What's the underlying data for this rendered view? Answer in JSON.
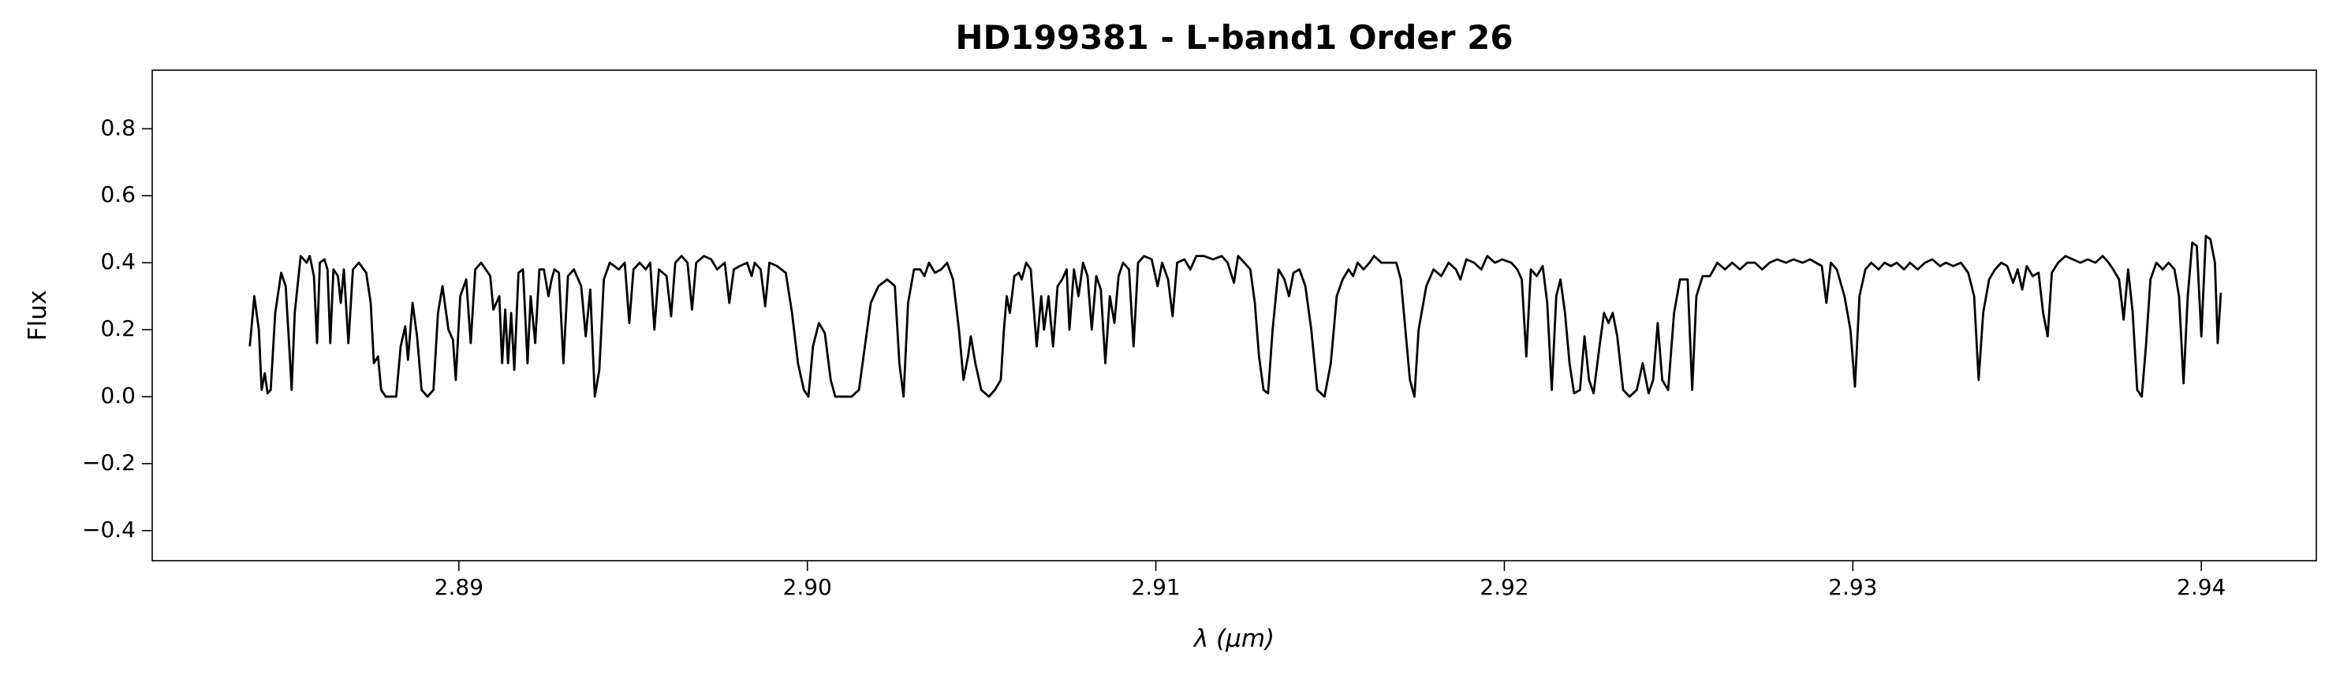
{
  "chart_data": {
    "type": "line",
    "title": "HD199381 - L-band1 Order 26",
    "xlabel": "λ (μm)",
    "ylabel": "Flux",
    "color": "#000000",
    "xlim": [
      2.8812,
      2.9433
    ],
    "ylim": [
      -0.49,
      0.975
    ],
    "xticks": [
      2.89,
      {
        "value": 2.9,
        "label": "2.90"
      },
      2.91,
      2.92,
      2.93,
      2.94
    ],
    "yticks": [
      {
        "value": -0.4,
        "label": "−0.4"
      },
      {
        "value": -0.2,
        "label": "−0.2"
      },
      {
        "value": 0,
        "label": "0.0"
      },
      0.2,
      0.4,
      0.6,
      0.8
    ],
    "x": [
      2.884,
      2.88413,
      2.88426,
      2.88434,
      2.88443,
      2.88451,
      2.8846,
      2.88473,
      2.8849,
      2.88503,
      2.88516,
      2.8852,
      2.88529,
      2.88546,
      2.88563,
      2.88572,
      2.88584,
      2.88593,
      2.88601,
      2.88614,
      2.88623,
      2.88631,
      2.8864,
      2.88653,
      2.88661,
      2.8867,
      2.88683,
      2.88696,
      2.88713,
      2.88734,
      2.88747,
      2.88756,
      2.88768,
      2.88777,
      2.8879,
      2.8882,
      2.88833,
      2.88846,
      2.88854,
      2.88867,
      2.8888,
      2.88893,
      2.8891,
      2.88927,
      2.8894,
      2.88953,
      2.8897,
      2.88983,
      2.88991,
      2.89004,
      2.89021,
      2.89034,
      2.89047,
      2.89064,
      2.89077,
      2.8909,
      2.89099,
      2.89116,
      2.89124,
      2.89133,
      2.89141,
      2.8915,
      2.89159,
      2.89171,
      2.89184,
      2.89197,
      2.89206,
      2.89219,
      2.89231,
      2.89244,
      2.89257,
      2.89266,
      2.89274,
      2.89287,
      2.893,
      2.89313,
      2.8933,
      2.89351,
      2.89364,
      2.89377,
      2.8939,
      2.89403,
      2.89416,
      2.89433,
      2.89459,
      2.89476,
      2.89489,
      2.89501,
      2.89519,
      2.89536,
      2.89549,
      2.89561,
      2.89574,
      2.89596,
      2.89609,
      2.89621,
      2.89639,
      2.89656,
      2.89669,
      2.89681,
      2.89703,
      2.89724,
      2.89741,
      2.89763,
      2.89776,
      2.89789,
      2.89806,
      2.89827,
      2.8984,
      2.89849,
      2.89866,
      2.89879,
      2.89891,
      2.89913,
      2.89938,
      2.89956,
      2.89973,
      2.8999,
      2.90003,
      2.90016,
      2.90033,
      2.9005,
      2.90067,
      2.9008,
      2.90127,
      2.90148,
      2.90165,
      2.90182,
      2.90204,
      2.90229,
      2.90251,
      2.90264,
      2.90276,
      2.90289,
      2.90306,
      2.90324,
      2.90336,
      2.90349,
      2.90366,
      2.90384,
      2.90401,
      2.90418,
      2.90435,
      2.90448,
      2.90461,
      2.90469,
      2.90482,
      2.90499,
      2.90521,
      2.90538,
      2.90555,
      2.90564,
      2.90572,
      2.90581,
      2.90594,
      2.90607,
      2.90615,
      2.90628,
      2.90641,
      2.90658,
      2.90671,
      2.90679,
      2.90692,
      2.90705,
      2.90718,
      2.90731,
      2.90744,
      2.90752,
      2.90765,
      2.90778,
      2.90791,
      2.90804,
      2.90816,
      2.90829,
      2.90842,
      2.90855,
      2.90868,
      2.90881,
      2.90893,
      2.90906,
      2.90923,
      2.90936,
      2.90949,
      2.90966,
      2.90988,
      2.91005,
      2.91018,
      2.91035,
      2.91048,
      2.91061,
      2.91082,
      2.91099,
      2.91116,
      2.91138,
      2.91164,
      2.91189,
      2.91206,
      2.91224,
      2.91236,
      2.91254,
      2.91271,
      2.91284,
      2.91296,
      2.91309,
      2.91322,
      2.91335,
      2.91352,
      2.91369,
      2.91382,
      2.91395,
      2.91412,
      2.91429,
      2.91446,
      2.91463,
      2.91484,
      2.91502,
      2.91519,
      2.91536,
      2.91553,
      2.91566,
      2.91579,
      2.91596,
      2.91613,
      2.91626,
      2.91647,
      2.91669,
      2.9169,
      2.91703,
      2.91716,
      2.91729,
      2.91742,
      2.91754,
      2.91776,
      2.91797,
      2.91819,
      2.9184,
      2.91861,
      2.91874,
      2.91891,
      2.91913,
      2.91934,
      2.91951,
      2.91973,
      2.91994,
      2.9202,
      2.92037,
      2.9205,
      2.92063,
      2.92076,
      2.92093,
      2.9211,
      2.92123,
      2.92136,
      2.92149,
      2.92161,
      2.92174,
      2.92187,
      2.922,
      2.92217,
      2.9223,
      2.92243,
      2.92256,
      2.92273,
      2.92286,
      2.92299,
      2.92311,
      2.92324,
      2.92341,
      2.92359,
      2.9238,
      2.92397,
      2.92414,
      2.92427,
      2.9244,
      2.92453,
      2.9247,
      2.92487,
      2.92504,
      2.92526,
      2.92539,
      2.92551,
      2.92569,
      2.9259,
      2.92611,
      2.92633,
      2.92654,
      2.92676,
      2.92697,
      2.92719,
      2.9274,
      2.92761,
      2.92783,
      2.92808,
      2.9283,
      2.92856,
      2.92877,
      2.92894,
      2.92911,
      2.92924,
      2.92937,
      2.92954,
      2.92976,
      2.92993,
      2.93006,
      2.93019,
      2.93036,
      2.93053,
      2.93074,
      2.93091,
      2.93109,
      2.93126,
      2.93147,
      2.93164,
      2.93186,
      2.93207,
      2.93228,
      2.9325,
      2.93267,
      2.93288,
      2.9331,
      2.93331,
      2.93348,
      2.93361,
      2.93374,
      2.93391,
      2.93408,
      2.93426,
      2.93443,
      2.9346,
      2.93473,
      2.93486,
      2.93499,
      2.93516,
      2.93533,
      2.93546,
      2.93559,
      2.93571,
      2.93589,
      2.9361,
      2.93631,
      2.93653,
      2.93674,
      2.93696,
      2.93717,
      2.93734,
      2.93747,
      2.93764,
      2.93777,
      2.9379,
      2.93803,
      2.93816,
      2.93829,
      2.93841,
      2.93854,
      2.93871,
      2.93889,
      2.93906,
      2.93923,
      2.93936,
      2.93949,
      2.93961,
      2.93974,
      2.93987,
      2.94,
      2.94013,
      2.94026,
      2.94039,
      2.94047,
      2.94056
    ],
    "values": [
      0.15,
      0.3,
      0.2,
      0.02,
      0.07,
      0.01,
      0.02,
      0.25,
      0.37,
      0.33,
      0.1,
      0.02,
      0.25,
      0.42,
      0.4,
      0.42,
      0.36,
      0.16,
      0.4,
      0.41,
      0.38,
      0.16,
      0.38,
      0.36,
      0.28,
      0.38,
      0.16,
      0.38,
      0.4,
      0.37,
      0.28,
      0.1,
      0.12,
      0.02,
      0,
      0,
      0.15,
      0.21,
      0.11,
      0.28,
      0.18,
      0.02,
      0,
      0.02,
      0.25,
      0.33,
      0.2,
      0.17,
      0.05,
      0.3,
      0.35,
      0.16,
      0.38,
      0.4,
      0.38,
      0.36,
      0.26,
      0.3,
      0.1,
      0.26,
      0.1,
      0.25,
      0.08,
      0.37,
      0.38,
      0.1,
      0.3,
      0.16,
      0.38,
      0.38,
      0.3,
      0.35,
      0.38,
      0.37,
      0.1,
      0.36,
      0.38,
      0.33,
      0.18,
      0.32,
      0,
      0.08,
      0.35,
      0.4,
      0.38,
      0.4,
      0.22,
      0.38,
      0.4,
      0.38,
      0.4,
      0.2,
      0.38,
      0.36,
      0.24,
      0.4,
      0.42,
      0.4,
      0.26,
      0.4,
      0.42,
      0.41,
      0.38,
      0.4,
      0.28,
      0.38,
      0.39,
      0.4,
      0.36,
      0.4,
      0.38,
      0.27,
      0.4,
      0.39,
      0.37,
      0.25,
      0.1,
      0.02,
      0,
      0.15,
      0.22,
      0.19,
      0.05,
      0,
      0,
      0.02,
      0.15,
      0.28,
      0.33,
      0.35,
      0.33,
      0.1,
      0,
      0.28,
      0.38,
      0.38,
      0.36,
      0.4,
      0.37,
      0.38,
      0.4,
      0.35,
      0.2,
      0.05,
      0.12,
      0.18,
      0.1,
      0.02,
      0,
      0.02,
      0.05,
      0.2,
      0.3,
      0.25,
      0.36,
      0.37,
      0.35,
      0.4,
      0.38,
      0.15,
      0.3,
      0.2,
      0.3,
      0.15,
      0.33,
      0.35,
      0.38,
      0.2,
      0.38,
      0.3,
      0.4,
      0.36,
      0.2,
      0.36,
      0.32,
      0.1,
      0.3,
      0.22,
      0.36,
      0.4,
      0.38,
      0.15,
      0.4,
      0.42,
      0.41,
      0.33,
      0.4,
      0.35,
      0.24,
      0.4,
      0.41,
      0.38,
      0.42,
      0.42,
      0.41,
      0.42,
      0.4,
      0.34,
      0.42,
      0.4,
      0.38,
      0.28,
      0.12,
      0.02,
      0.01,
      0.2,
      0.38,
      0.35,
      0.3,
      0.37,
      0.38,
      0.33,
      0.2,
      0.02,
      0,
      0.1,
      0.3,
      0.35,
      0.38,
      0.36,
      0.4,
      0.38,
      0.4,
      0.42,
      0.4,
      0.4,
      0.4,
      0.35,
      0.2,
      0.05,
      0,
      0.2,
      0.33,
      0.38,
      0.36,
      0.4,
      0.38,
      0.35,
      0.41,
      0.4,
      0.38,
      0.42,
      0.4,
      0.41,
      0.4,
      0.38,
      0.35,
      0.12,
      0.38,
      0.36,
      0.39,
      0.28,
      0.02,
      0.3,
      0.35,
      0.25,
      0.1,
      0.01,
      0.02,
      0.18,
      0.05,
      0.01,
      0.15,
      0.25,
      0.22,
      0.25,
      0.18,
      0.02,
      0,
      0.02,
      0.1,
      0.01,
      0.05,
      0.22,
      0.05,
      0.02,
      0.25,
      0.35,
      0.35,
      0.02,
      0.3,
      0.36,
      0.36,
      0.4,
      0.38,
      0.4,
      0.38,
      0.4,
      0.4,
      0.38,
      0.4,
      0.41,
      0.4,
      0.41,
      0.4,
      0.41,
      0.4,
      0.39,
      0.28,
      0.4,
      0.38,
      0.3,
      0.2,
      0.03,
      0.3,
      0.38,
      0.4,
      0.38,
      0.4,
      0.39,
      0.4,
      0.38,
      0.4,
      0.38,
      0.4,
      0.41,
      0.39,
      0.4,
      0.39,
      0.4,
      0.37,
      0.3,
      0.05,
      0.25,
      0.35,
      0.38,
      0.4,
      0.39,
      0.34,
      0.38,
      0.32,
      0.39,
      0.36,
      0.37,
      0.25,
      0.18,
      0.37,
      0.4,
      0.42,
      0.41,
      0.4,
      0.41,
      0.4,
      0.42,
      0.4,
      0.38,
      0.35,
      0.23,
      0.38,
      0.25,
      0.02,
      0,
      0.15,
      0.35,
      0.4,
      0.38,
      0.4,
      0.38,
      0.3,
      0.04,
      0.3,
      0.46,
      0.45,
      0.18,
      0.48,
      0.47,
      0.4,
      0.16,
      0.31
    ]
  }
}
